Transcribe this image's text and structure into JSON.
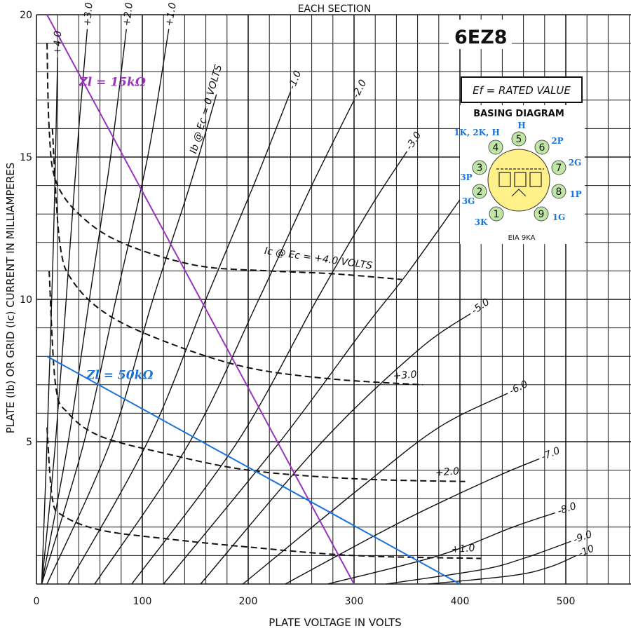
{
  "header": {
    "each_section": "EACH SECTION",
    "tube_type": "6EZ8",
    "ef_label": "Ef = RATED VALUE"
  },
  "chart_data": {
    "type": "line",
    "xlabel": "PLATE VOLTAGE IN VOLTS",
    "ylabel": "PLATE (Ib) OR GRID (Ic) CURRENT IN MILLIAMPERES",
    "xlim": [
      0,
      570
    ],
    "ylim": [
      0,
      20
    ],
    "x_ticks": [
      0,
      100,
      200,
      300,
      400,
      500
    ],
    "y_ticks": [
      5,
      10,
      15,
      20
    ],
    "grid": true,
    "plate_curves": [
      {
        "label": "+4.0",
        "points": [
          [
            5,
            0
          ],
          [
            10,
            5
          ],
          [
            16,
            12
          ],
          [
            20,
            18.5
          ]
        ]
      },
      {
        "label": "+3.0",
        "points": [
          [
            5,
            0
          ],
          [
            18,
            5
          ],
          [
            30,
            11
          ],
          [
            40,
            16
          ],
          [
            48,
            19.5
          ]
        ]
      },
      {
        "label": "+2.0",
        "points": [
          [
            5,
            0
          ],
          [
            30,
            5
          ],
          [
            50,
            10
          ],
          [
            70,
            15
          ],
          [
            85,
            19.5
          ]
        ]
      },
      {
        "label": "+1.0",
        "points": [
          [
            5,
            0
          ],
          [
            45,
            5
          ],
          [
            75,
            10
          ],
          [
            105,
            15
          ],
          [
            125,
            19.5
          ]
        ]
      },
      {
        "label": "Ib @ Ec = 0 VOLTS",
        "points": [
          [
            10,
            0
          ],
          [
            70,
            5
          ],
          [
            110,
            10
          ],
          [
            145,
            14
          ],
          [
            170,
            17.2
          ]
        ]
      },
      {
        "label": "-1.0",
        "points": [
          [
            30,
            0
          ],
          [
            105,
            5
          ],
          [
            160,
            10
          ],
          [
            205,
            14
          ],
          [
            240,
            17.3
          ]
        ]
      },
      {
        "label": "-2.0",
        "points": [
          [
            55,
            0
          ],
          [
            145,
            5
          ],
          [
            210,
            10
          ],
          [
            260,
            14
          ],
          [
            300,
            17
          ]
        ]
      },
      {
        "label": "-3.0",
        "points": [
          [
            90,
            0
          ],
          [
            190,
            5
          ],
          [
            265,
            10
          ],
          [
            315,
            13.2
          ],
          [
            350,
            15.2
          ]
        ]
      },
      {
        "label": "-4.0",
        "points": [
          [
            120,
            0
          ],
          [
            230,
            5
          ],
          [
            310,
            9
          ],
          [
            350,
            10.9
          ],
          [
            400,
            13.5
          ]
        ]
      },
      {
        "label": "-5.0",
        "points": [
          [
            155,
            0
          ],
          [
            270,
            5
          ],
          [
            360,
            8.2
          ],
          [
            410,
            9.5
          ]
        ]
      },
      {
        "label": "-6.0",
        "points": [
          [
            195,
            0
          ],
          [
            310,
            3.5
          ],
          [
            380,
            5.5
          ],
          [
            445,
            6.7
          ]
        ]
      },
      {
        "label": "-7.0",
        "points": [
          [
            235,
            0
          ],
          [
            345,
            2.2
          ],
          [
            430,
            3.7
          ],
          [
            475,
            4.4
          ]
        ]
      },
      {
        "label": "-8.0",
        "points": [
          [
            275,
            0
          ],
          [
            380,
            1
          ],
          [
            450,
            2
          ],
          [
            490,
            2.5
          ]
        ]
      },
      {
        "label": "-9.0",
        "points": [
          [
            330,
            0
          ],
          [
            420,
            0.5
          ],
          [
            460,
            0.9
          ],
          [
            505,
            1.5
          ]
        ]
      },
      {
        "label": "-10",
        "points": [
          [
            370,
            0
          ],
          [
            450,
            0.3
          ],
          [
            485,
            0.6
          ],
          [
            510,
            1
          ]
        ]
      }
    ],
    "grid_curves": [
      {
        "label": "Ic @ Ec = +4.0 VOLTS",
        "points": [
          [
            10,
            19
          ],
          [
            12,
            16
          ],
          [
            18,
            14.2
          ],
          [
            40,
            13
          ],
          [
            80,
            12
          ],
          [
            150,
            11.2
          ],
          [
            220,
            11
          ],
          [
            280,
            10.9
          ],
          [
            345,
            10.7
          ]
        ]
      },
      {
        "label": "+3.0",
        "points": [
          [
            15,
            16
          ],
          [
            22,
            12
          ],
          [
            35,
            10.6
          ],
          [
            70,
            9.4
          ],
          [
            130,
            8.4
          ],
          [
            200,
            7.6
          ],
          [
            280,
            7.2
          ],
          [
            365,
            7
          ]
        ]
      },
      {
        "label": "+2.0",
        "points": [
          [
            12,
            11
          ],
          [
            18,
            7
          ],
          [
            30,
            6
          ],
          [
            60,
            5.2
          ],
          [
            120,
            4.6
          ],
          [
            200,
            4
          ],
          [
            300,
            3.7
          ],
          [
            405,
            3.6
          ]
        ]
      },
      {
        "label": "+1.0",
        "points": [
          [
            10,
            5.5
          ],
          [
            15,
            3
          ],
          [
            25,
            2.4
          ],
          [
            60,
            1.9
          ],
          [
            120,
            1.6
          ],
          [
            200,
            1.3
          ],
          [
            300,
            1
          ],
          [
            420,
            0.9
          ]
        ]
      }
    ],
    "load_lines": [
      {
        "name": "Zl = 15kΩ",
        "color": "#9933bb",
        "points": [
          [
            10,
            20
          ],
          [
            300,
            0
          ]
        ]
      },
      {
        "name": "Zl = 50kΩ",
        "color": "#1a73d9",
        "points": [
          [
            10,
            8
          ],
          [
            400,
            0
          ]
        ]
      }
    ]
  },
  "basing_diagram": {
    "title": "BASING DIAGRAM",
    "standard": "EIA 9KA",
    "pin_labels": [
      "1K, 2K, H",
      "H",
      "2P",
      "2G",
      "1P",
      "1G",
      "3K",
      "3G",
      "3P"
    ],
    "pins": [
      "1",
      "2",
      "3",
      "4",
      "5",
      "6",
      "7",
      "8",
      "9"
    ]
  },
  "colors": {
    "grid": "#1a1a1a",
    "curve": "#111111",
    "load_15k": "#9933bb",
    "load_50k": "#1a73d9",
    "pin_fill": "#bfe6a5",
    "tube_fill": "#fff08a"
  }
}
